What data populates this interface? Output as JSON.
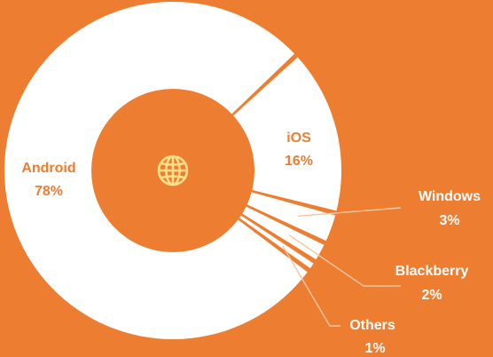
{
  "chart_data": {
    "type": "pie",
    "variant": "donut",
    "categories": [
      "Android",
      "iOS",
      "Windows",
      "Blackberry",
      "Others"
    ],
    "values": [
      78,
      16,
      3,
      2,
      1
    ],
    "value_labels": [
      "78%",
      "16%",
      "3%",
      "2%",
      "1%"
    ],
    "title": "",
    "center_icon": "globe-icon",
    "colors": {
      "background": "#ED7D31",
      "slice": "#FFFFFF",
      "hole": "#ED7D31",
      "label_on_slice": "#ED7D31",
      "label_outside": "#FFFFFF",
      "leader_line": "#F6C6A4",
      "icon": "#FFE08A"
    }
  }
}
